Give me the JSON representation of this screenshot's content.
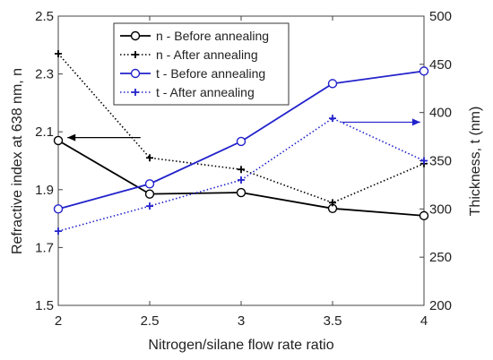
{
  "chart_data": {
    "type": "line",
    "xlabel": "Nitrogen/silane flow rate ratio",
    "ylabel_left": "Refractive index at 638 nm,  n",
    "ylabel_right": "Thickness,  t (nm)",
    "x": [
      2,
      2.5,
      3,
      3.5,
      4
    ],
    "x_ticks": [
      "2",
      "2.5",
      "3",
      "3.5",
      "4"
    ],
    "xlim": [
      2,
      4
    ],
    "ylim_left": [
      1.5,
      2.5
    ],
    "y_ticks_left": [
      "1.5",
      "1.7",
      "1.9",
      "2.1",
      "2.3",
      "2.5"
    ],
    "ylim_right": [
      200,
      500
    ],
    "y_ticks_right": [
      "200",
      "250",
      "300",
      "350",
      "400",
      "450",
      "500"
    ],
    "grid": false,
    "legend_position": "top-center",
    "series": [
      {
        "name": "n - Before annealing",
        "axis": "left",
        "values": [
          2.07,
          1.885,
          1.89,
          1.835,
          1.81
        ],
        "color": "#000000",
        "line": "solid",
        "marker": "circle"
      },
      {
        "name": "n - After annealing",
        "axis": "left",
        "values": [
          2.37,
          2.01,
          1.97,
          1.855,
          1.99
        ],
        "color": "#000000",
        "line": "dotted",
        "marker": "plus"
      },
      {
        "name": "t - Before annealing",
        "axis": "right",
        "values": [
          300,
          326,
          370,
          430,
          443
        ],
        "color": "#2222cc",
        "line": "solid",
        "marker": "circle"
      },
      {
        "name": "t - After annealing",
        "axis": "right",
        "values": [
          277,
          303,
          330,
          394,
          350
        ],
        "color": "#2222cc",
        "line": "dotted",
        "marker": "plus"
      }
    ],
    "annotations": [
      {
        "type": "arrow",
        "direction": "left",
        "axis": "left",
        "x_from": 2.45,
        "x_to": 2.05,
        "y": 2.08,
        "color": "#000000"
      },
      {
        "type": "arrow",
        "direction": "right",
        "axis": "right",
        "x_from": 3.55,
        "x_to": 3.98,
        "y": 390,
        "color": "#2222cc"
      }
    ]
  }
}
